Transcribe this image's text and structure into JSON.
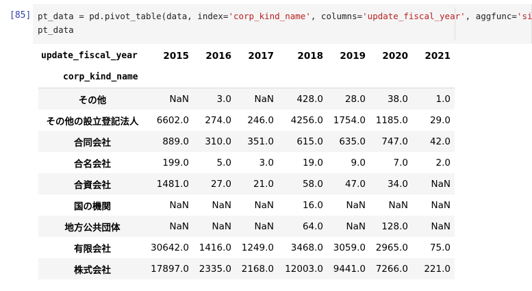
{
  "cell": {
    "prompt": "[85]",
    "code_line1_pre": "pt_data = pd.pivot_table(data, index=",
    "code_line1_s1": "'corp_kind_name'",
    "code_line1_mid": ", columns=",
    "code_line1_s2": "'update_fiscal_year'",
    "code_line1_mid2": ", aggfunc=",
    "code_line1_s3": "'size'",
    "code_line1_post": ")",
    "code_line2": "pt_data"
  },
  "table": {
    "columns_name": "update_fiscal_year",
    "index_name": "corp_kind_name",
    "columns": [
      "2015",
      "2016",
      "2017",
      "2018",
      "2019",
      "2020",
      "2021"
    ],
    "rows": [
      {
        "label": "その他",
        "values": [
          "NaN",
          "3.0",
          "NaN",
          "428.0",
          "28.0",
          "38.0",
          "1.0"
        ]
      },
      {
        "label": "その他の設立登記法人",
        "values": [
          "6602.0",
          "274.0",
          "246.0",
          "4256.0",
          "1754.0",
          "1185.0",
          "29.0"
        ]
      },
      {
        "label": "合同会社",
        "values": [
          "889.0",
          "310.0",
          "351.0",
          "615.0",
          "635.0",
          "747.0",
          "42.0"
        ]
      },
      {
        "label": "合名会社",
        "values": [
          "199.0",
          "5.0",
          "3.0",
          "19.0",
          "9.0",
          "7.0",
          "2.0"
        ]
      },
      {
        "label": "合資会社",
        "values": [
          "1481.0",
          "27.0",
          "21.0",
          "58.0",
          "47.0",
          "34.0",
          "NaN"
        ]
      },
      {
        "label": "国の機関",
        "values": [
          "NaN",
          "NaN",
          "NaN",
          "16.0",
          "NaN",
          "NaN",
          "NaN"
        ]
      },
      {
        "label": "地方公共団体",
        "values": [
          "NaN",
          "NaN",
          "NaN",
          "64.0",
          "NaN",
          "128.0",
          "NaN"
        ]
      },
      {
        "label": "有限会社",
        "values": [
          "30642.0",
          "1416.0",
          "1249.0",
          "3468.0",
          "3059.0",
          "2965.0",
          "75.0"
        ]
      },
      {
        "label": "株式会社",
        "values": [
          "17897.0",
          "2335.0",
          "2168.0",
          "12003.0",
          "9441.0",
          "7266.0",
          "221.0"
        ]
      }
    ]
  }
}
